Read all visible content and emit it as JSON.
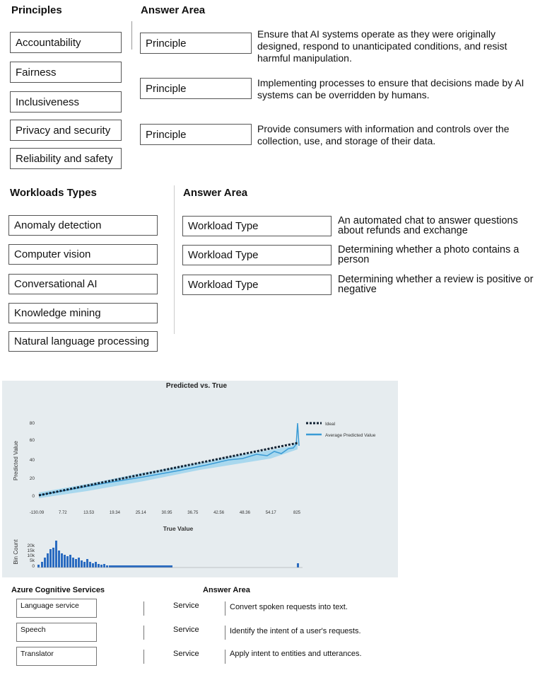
{
  "principles": {
    "title": "Principles",
    "items": [
      "Accountability",
      "Fairness",
      "Inclusiveness",
      "Privacy and security",
      "Reliability and safety"
    ]
  },
  "principles_answer": {
    "title": "Answer Area",
    "rows": [
      {
        "slot": "Principle",
        "description": "Ensure that AI systems operate as they were originally designed, respond to unanticipated conditions, and resist harmful manipulation."
      },
      {
        "slot": "Principle",
        "description": "Implementing processes to ensure that decisions made by AI systems can be overridden by humans."
      },
      {
        "slot": "Principle",
        "description": "Provide consumers with information and controls over the collection, use, and storage of their data."
      }
    ]
  },
  "workloads": {
    "title": "Workloads Types",
    "items": [
      "Anomaly detection",
      "Computer vision",
      "Conversational AI",
      "Knowledge mining",
      "Natural language processing"
    ]
  },
  "workloads_answer": {
    "title": "Answer Area",
    "rows": [
      {
        "slot": "Workload Type",
        "description": "An automated chat to answer questions about refunds and exchange"
      },
      {
        "slot": "Workload Type",
        "description": "Determining whether a photo contains a person"
      },
      {
        "slot": "Workload Type",
        "description": "Determining whether a review is positive or negative"
      }
    ]
  },
  "chart_image": {
    "title": "Predicted vs. True",
    "y_label": "Predicted Value",
    "x_label": "True Value",
    "y_ticks": [
      "80",
      "60",
      "40",
      "20",
      "0"
    ],
    "x_ticks": [
      "-130.09",
      "7.72",
      "13.53",
      "19.34",
      "25.14",
      "30.95",
      "36.75",
      "42.56",
      "48.36",
      "54.17",
      "825"
    ],
    "legend": [
      "Ideal",
      "Average Predicted Value"
    ],
    "hist_label": "Bin Count",
    "hist_ticks": [
      "20k",
      "15k",
      "10k",
      "5k",
      "0"
    ]
  },
  "services": {
    "title": "Azure Cognitive Services",
    "items": [
      "Language service",
      "Speech",
      "Translator"
    ]
  },
  "services_answer": {
    "title": "Answer Area",
    "rows": [
      {
        "slot": "Service",
        "description": "Convert spoken requests into text."
      },
      {
        "slot": "Service",
        "description": "Identify the intent of a user's requests."
      },
      {
        "slot": "Service",
        "description": "Apply intent to entities and utterances."
      }
    ]
  }
}
